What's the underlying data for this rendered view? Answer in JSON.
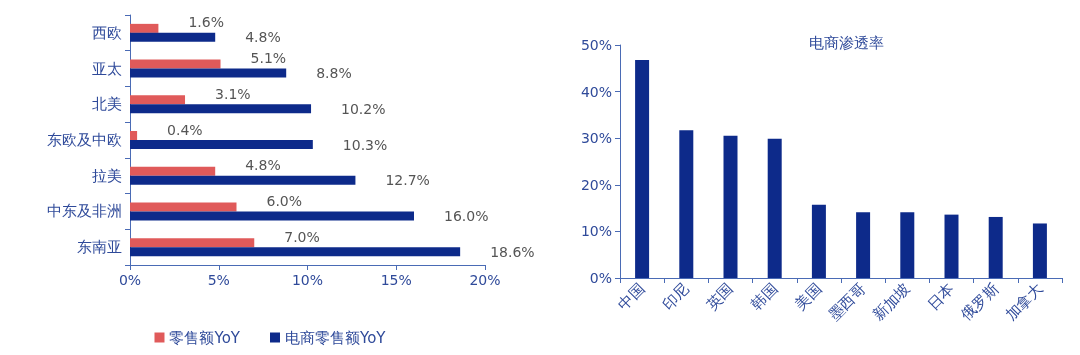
{
  "chart_data": [
    {
      "type": "bar",
      "orientation": "horizontal",
      "categories": [
        "西欧",
        "亚太",
        "北美",
        "东欧及中欧",
        "拉美",
        "中东及非洲",
        "东南亚"
      ],
      "series": [
        {
          "name": "零售额YoY",
          "color": "#e05a5a",
          "values": [
            1.6,
            5.1,
            3.1,
            0.4,
            4.8,
            6.0,
            7.0
          ],
          "value_labels": [
            "1.6%",
            "5.1%",
            "3.1%",
            "0.4%",
            "4.8%",
            "6.0%",
            "7.0%"
          ]
        },
        {
          "name": "电商零售额YoY",
          "color": "#0d2a8a",
          "values": [
            4.8,
            8.8,
            10.2,
            10.3,
            12.7,
            16.0,
            18.6
          ],
          "value_labels": [
            "4.8%",
            "8.8%",
            "10.2%",
            "10.3%",
            "12.7%",
            "16.0%",
            "18.6%"
          ]
        }
      ],
      "xlim": [
        0,
        20
      ],
      "xticks": [
        {
          "value": 0,
          "label": "0%"
        },
        {
          "value": 5,
          "label": "5%"
        },
        {
          "value": 10,
          "label": "10%"
        },
        {
          "value": 15,
          "label": "15%"
        },
        {
          "value": 20,
          "label": "20%"
        }
      ],
      "grid": false,
      "legend": "bottom"
    },
    {
      "type": "bar",
      "title": "电商渗透率",
      "categories": [
        "中国",
        "印尼",
        "英国",
        "韩国",
        "美国",
        "墨西哥",
        "新加坡",
        "日本",
        "俄罗斯",
        "加拿大"
      ],
      "series": [
        {
          "color": "#0d2a8a",
          "values": [
            46.8,
            31.7,
            30.5,
            29.9,
            15.7,
            14.1,
            14.1,
            13.6,
            13.1,
            11.7
          ]
        }
      ],
      "ylim": [
        0,
        50
      ],
      "yticks": [
        {
          "value": 0,
          "label": "0%"
        },
        {
          "value": 10,
          "label": "10%"
        },
        {
          "value": 20,
          "label": "20%"
        },
        {
          "value": 30,
          "label": "30%"
        },
        {
          "value": 40,
          "label": "40%"
        },
        {
          "value": 50,
          "label": "50%"
        }
      ],
      "grid": false,
      "legend": false
    }
  ]
}
